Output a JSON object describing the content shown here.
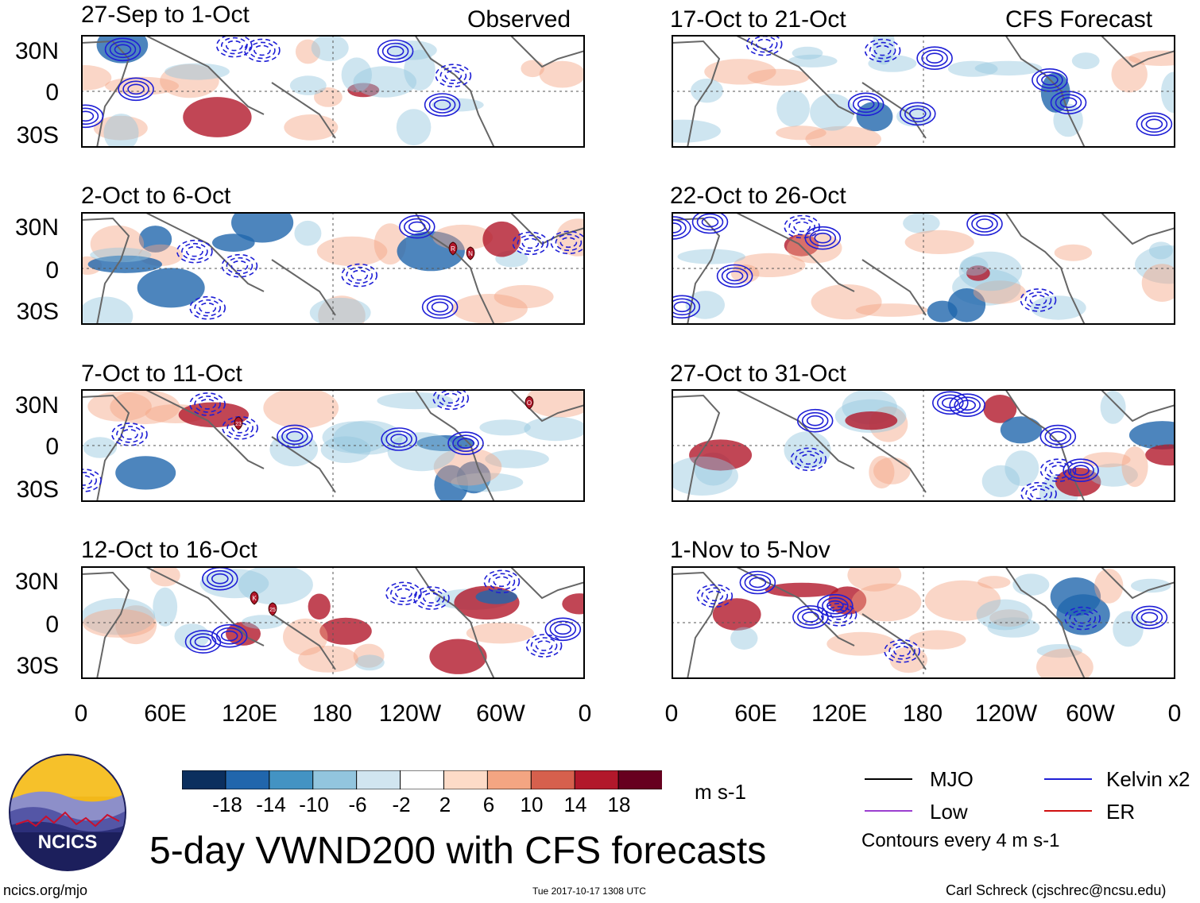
{
  "figure": {
    "title": "5-day VWND200 with CFS forecasts",
    "left_header": "Observed",
    "right_header": "CFS Forecast",
    "footer_left": "ncics.org/mjo",
    "footer_center": "Tue 2017-10-17 1308 UTC",
    "footer_right": "Carl Schreck (cjschrec@ncsu.edu)",
    "logo_text": "NCICS"
  },
  "panels": [
    {
      "title": "27-Sep to 1-Oct",
      "storms": []
    },
    {
      "title": "2-Oct to 6-Oct",
      "storms": [
        "R",
        "N"
      ]
    },
    {
      "title": "7-Oct to 11-Oct",
      "storms": [
        "23",
        "O"
      ]
    },
    {
      "title": "12-Oct to 16-Oct",
      "storms": [
        "K",
        "25"
      ]
    },
    {
      "title": "17-Oct to 21-Oct",
      "storms": []
    },
    {
      "title": "22-Oct to 26-Oct",
      "storms": []
    },
    {
      "title": "27-Oct to 31-Oct",
      "storms": []
    },
    {
      "title": "1-Nov to 5-Nov",
      "storms": []
    }
  ],
  "axes": {
    "lat_labels": [
      "30N",
      "0",
      "30S"
    ],
    "lon_labels": [
      "0",
      "60E",
      "120E",
      "180",
      "120W",
      "60W",
      "0"
    ]
  },
  "colorbar": {
    "ticks": [
      "-18",
      "-14",
      "-10",
      "-6",
      "-2",
      "2",
      "6",
      "10",
      "14",
      "18"
    ],
    "units": "m s-1",
    "colors": [
      "#0b2f5e",
      "#2166ac",
      "#4393c3",
      "#92c5de",
      "#d1e5f0",
      "#ffffff",
      "#fddbc7",
      "#f4a582",
      "#d6604d",
      "#b2182b",
      "#67001f"
    ]
  },
  "legend": {
    "items": [
      {
        "label": "MJO",
        "color": "#000000"
      },
      {
        "label": "Kelvin x2",
        "color": "#1f1fd6"
      },
      {
        "label": "Low",
        "color": "#9b3fd0"
      },
      {
        "label": "ER",
        "color": "#d01010"
      }
    ],
    "note": "Contours every 4 m s-1"
  }
}
